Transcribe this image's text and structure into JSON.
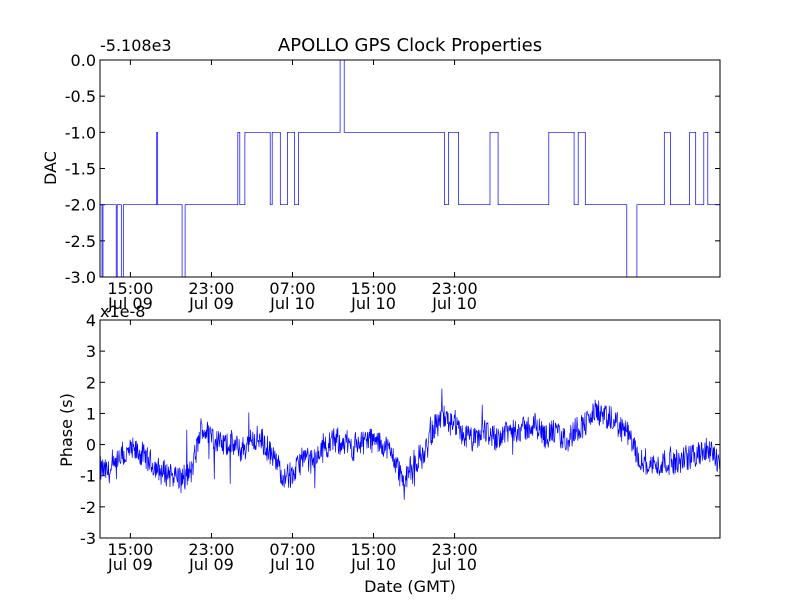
{
  "chart_data": [
    {
      "type": "line",
      "title": "APOLLO GPS Clock Properties",
      "ylabel": "DAC",
      "xlabel": "",
      "offset_label": "-5.108e3",
      "ylim": [
        -3.0,
        0.0
      ],
      "yticks": [
        0.0,
        -0.5,
        -1.0,
        -1.5,
        -2.0,
        -2.5,
        -3.0
      ],
      "ytick_labels": [
        "0.0",
        "-0.5",
        "-1.0",
        "-1.5",
        "-2.0",
        "-2.5",
        "-3.0"
      ],
      "xticks": [
        {
          "time": "Jul 09 15:00",
          "line1": "15:00",
          "line2": "Jul 09"
        },
        {
          "time": "Jul 09 23:00",
          "line1": "23:00",
          "line2": "Jul 09"
        },
        {
          "time": "Jul 10 07:00",
          "line1": "07:00",
          "line2": "Jul 10"
        },
        {
          "time": "Jul 10 15:00",
          "line1": "15:00",
          "line2": "Jul 10"
        },
        {
          "time": "Jul 10 23:00",
          "line1": "23:00",
          "line2": "Jul 10"
        }
      ],
      "line_color": "#0000ff",
      "grid": false,
      "series": [
        {
          "time_hours_since_jul09_1200": [
            0.0,
            0.2,
            0.3,
            1.5,
            1.6,
            1.7,
            2.1,
            2.3,
            3.0,
            5.6,
            5.7,
            7.0,
            8.1,
            8.4,
            10.4,
            11.7,
            13.6,
            13.8,
            14.3,
            15.6,
            16.8,
            17.0,
            17.4,
            17.8,
            18.5,
            19.2,
            19.6,
            20.8,
            21.8,
            23.7,
            24.1,
            26.8,
            30.6,
            34.0,
            34.4,
            35.4,
            38.5,
            39.3,
            40.7,
            43.2,
            44.3,
            46.8,
            47.2,
            47.9,
            48.6,
            50.0,
            51.6,
            52.0,
            53.0,
            55.7,
            56.3,
            57.6,
            58.2,
            58.8,
            59.6,
            60.0,
            61.2
          ],
          "values": [
            -2.0,
            -3.0,
            -2.0,
            -2.0,
            -3.0,
            -2.0,
            -3.0,
            -2.0,
            -2.0,
            -1.0,
            -2.0,
            -2.0,
            -3.0,
            -2.0,
            -2.0,
            -2.0,
            -1.0,
            -2.0,
            -1.0,
            -1.0,
            -2.0,
            -1.0,
            -1.0,
            -2.0,
            -1.0,
            -2.0,
            -1.0,
            -1.0,
            -1.0,
            0.0,
            -1.0,
            -1.0,
            -1.0,
            -2.0,
            -1.0,
            -2.0,
            -1.0,
            -2.0,
            -2.0,
            -2.0,
            -1.0,
            -2.0,
            -1.0,
            -2.0,
            -2.0,
            -2.0,
            -2.0,
            -3.0,
            -2.0,
            -1.0,
            -2.0,
            -2.0,
            -1.0,
            -2.0,
            -1.0,
            -2.0,
            -2.0
          ]
        }
      ]
    },
    {
      "type": "line",
      "title": "",
      "ylabel": "Phase (s)",
      "xlabel": "Date (GMT)",
      "offset_label": "x1e-8",
      "ylim": [
        -3,
        4
      ],
      "yticks": [
        4,
        3,
        2,
        1,
        0,
        -1,
        -2,
        -3
      ],
      "ytick_labels": [
        "4",
        "3",
        "2",
        "1",
        "0",
        "-1",
        "-2",
        "-3"
      ],
      "xticks": [
        {
          "time": "Jul 09 15:00",
          "line1": "15:00",
          "line2": "Jul 09"
        },
        {
          "time": "Jul 09 23:00",
          "line1": "23:00",
          "line2": "Jul 09"
        },
        {
          "time": "Jul 10 07:00",
          "line1": "07:00",
          "line2": "Jul 10"
        },
        {
          "time": "Jul 10 15:00",
          "line1": "15:00",
          "line2": "Jul 10"
        },
        {
          "time": "Jul 10 23:00",
          "line1": "23:00",
          "line2": "Jul 10"
        }
      ],
      "line_color": "#0000ff",
      "grid": false,
      "series": [
        {
          "time_hours_since_jul09_1200": [
            0.0,
            1.0,
            2.0,
            3.0,
            4.0,
            5.0,
            6.0,
            7.0,
            8.0,
            9.0,
            10.0,
            11.0,
            12.0,
            13.0,
            14.0,
            15.0,
            16.0,
            17.0,
            18.0,
            19.0,
            20.0,
            21.0,
            22.0,
            23.0,
            24.0,
            25.0,
            26.0,
            27.0,
            28.0,
            29.0,
            30.0,
            31.0,
            32.0,
            33.0,
            34.0,
            35.0,
            36.0,
            37.0,
            38.0,
            39.0,
            40.0,
            41.0,
            42.0,
            43.0,
            44.0,
            45.0,
            46.0,
            47.0,
            48.0,
            49.0,
            50.0,
            51.0,
            52.0,
            53.0,
            54.0,
            55.0,
            56.0,
            57.0,
            58.0,
            59.0,
            60.0,
            61.2
          ],
          "values": [
            -0.8,
            -0.9,
            -0.5,
            -0.2,
            -0.3,
            -0.6,
            -0.9,
            -0.9,
            -1.1,
            -0.9,
            0.5,
            0.3,
            0.0,
            0.0,
            -0.2,
            0.2,
            0.1,
            -0.4,
            -0.9,
            -1.0,
            -0.4,
            -0.6,
            -0.1,
            0.1,
            0.1,
            -0.1,
            0.2,
            0.1,
            0.0,
            -0.4,
            -1.2,
            -0.6,
            -0.3,
            0.6,
            0.9,
            0.5,
            0.3,
            0.1,
            0.5,
            0.2,
            0.4,
            0.5,
            0.5,
            0.6,
            0.3,
            0.4,
            0.1,
            0.5,
            0.7,
            1.1,
            0.8,
            0.7,
            0.4,
            -0.3,
            -0.6,
            -0.7,
            -0.5,
            -0.6,
            -0.4,
            -0.3,
            -0.2,
            -0.5
          ],
          "noise_amplitude": 0.5
        }
      ]
    }
  ]
}
